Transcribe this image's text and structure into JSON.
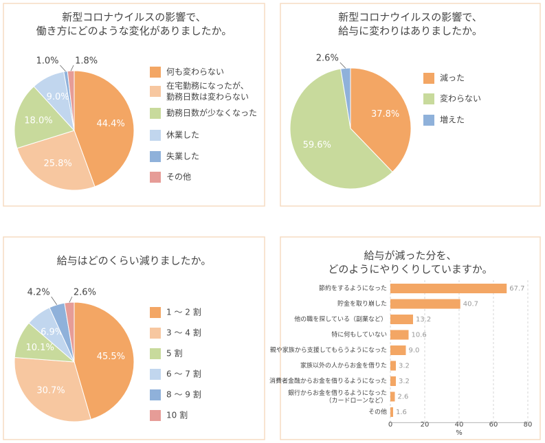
{
  "chart_data": [
    {
      "type": "pie",
      "title": "新型コロナウイルスの影響で、\n働き方にどのような変化がありましたか。",
      "categories": [
        "何も変わらない",
        "在宅勤務になったが、\n勤務日数は変わらない",
        "勤務日数が少なくなった",
        "休業した",
        "失業した",
        "その他"
      ],
      "values": [
        44.4,
        25.8,
        18.0,
        9.0,
        1.0,
        1.8
      ],
      "value_labels": [
        "44.4%",
        "25.8%",
        "18.0%",
        "9.0%",
        "1.0%",
        "1.8%"
      ],
      "colors": [
        "#f3a664",
        "#f7c7a0",
        "#c8da9c",
        "#c1d6ee",
        "#8fb1da",
        "#e69c97"
      ]
    },
    {
      "type": "pie",
      "title": "新型コロナウイルスの影響で、\n給与に変わりはありましたか。",
      "categories": [
        "減った",
        "変わらない",
        "増えた"
      ],
      "values": [
        37.8,
        59.6,
        2.6
      ],
      "value_labels": [
        "37.8%",
        "59.6%",
        "2.6%"
      ],
      "colors": [
        "#f3a664",
        "#c8da9c",
        "#8fb1da"
      ]
    },
    {
      "type": "pie",
      "title": "給与はどのくらい減りましたか。",
      "categories": [
        "1 ～ 2 割",
        "3 ～ 4 割",
        "5 割",
        "6 ～ 7 割",
        "8 ～ 9 割",
        "10 割"
      ],
      "values": [
        45.5,
        30.7,
        10.1,
        6.9,
        4.2,
        2.6
      ],
      "value_labels": [
        "45.5%",
        "30.7%",
        "10.1%",
        "6.9%",
        "4.2%",
        "2.6%"
      ],
      "colors": [
        "#f3a664",
        "#f7c7a0",
        "#c8da9c",
        "#c1d6ee",
        "#8fb1da",
        "#e69c97"
      ]
    },
    {
      "type": "bar",
      "orientation": "horizontal",
      "title": "給与が減った分を、\nどのようにやりくりしていますか。",
      "categories": [
        "節約をするようになった",
        "貯金を取り崩した",
        "他の職を探している（副業など）",
        "特に何もしていない",
        "親や家族から支援してもらうようになった",
        "家族以外の人からお金を借りた",
        "消費者金融からお金を借りるようになった",
        "銀行からお金を借りるようになった\n（カードローンなど）",
        "その他"
      ],
      "values": [
        67.7,
        40.7,
        13.2,
        10.6,
        9.0,
        3.2,
        3.2,
        2.6,
        1.6
      ],
      "value_labels": [
        "67.7",
        "40.7",
        "13.2",
        "10.6",
        "9.0",
        "3.2",
        "3.2",
        "2.6",
        "1.6"
      ],
      "color": "#f3a664",
      "xlabel": "%",
      "xlim": [
        0,
        80
      ],
      "xticks": [
        0,
        20,
        40,
        60,
        80
      ],
      "grid": true
    }
  ]
}
